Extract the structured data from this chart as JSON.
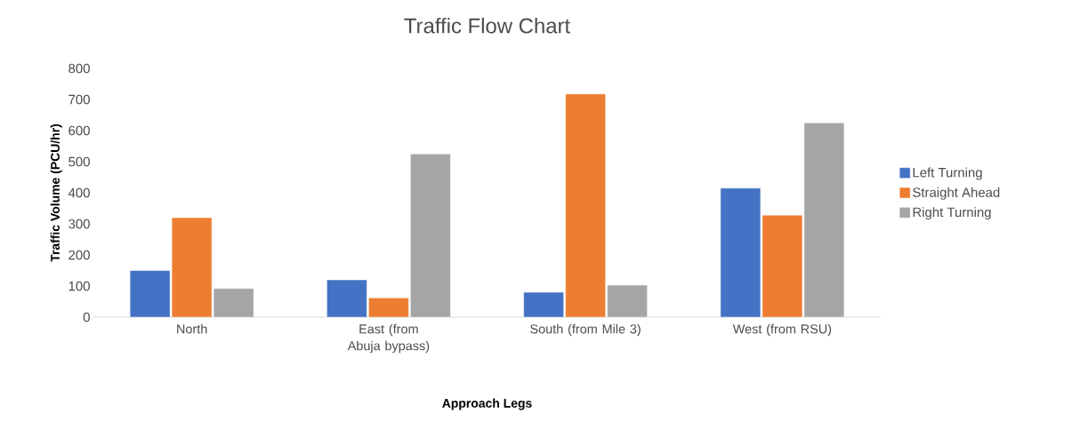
{
  "chart_data": {
    "type": "bar",
    "title": "Traffic Flow Chart",
    "xlabel": "Approach Legs",
    "ylabel": "Traffic Volume (PCU/hr)",
    "categories": [
      "North",
      "East (from Abuja bypass)",
      "South (from Mile 3)",
      "West (from RSU)"
    ],
    "series": [
      {
        "name": "Left Turning",
        "color": "#4472c4",
        "values": [
          150,
          120,
          80,
          415
        ]
      },
      {
        "name": "Straight Ahead",
        "color": "#ed7d31",
        "values": [
          320,
          62,
          718,
          328
        ]
      },
      {
        "name": "Right Turning",
        "color": "#a5a5a5",
        "values": [
          92,
          525,
          103,
          625
        ]
      }
    ],
    "ylim": [
      0,
      800
    ],
    "yticks": [
      0,
      100,
      200,
      300,
      400,
      500,
      600,
      700,
      800
    ],
    "legend": "right"
  }
}
